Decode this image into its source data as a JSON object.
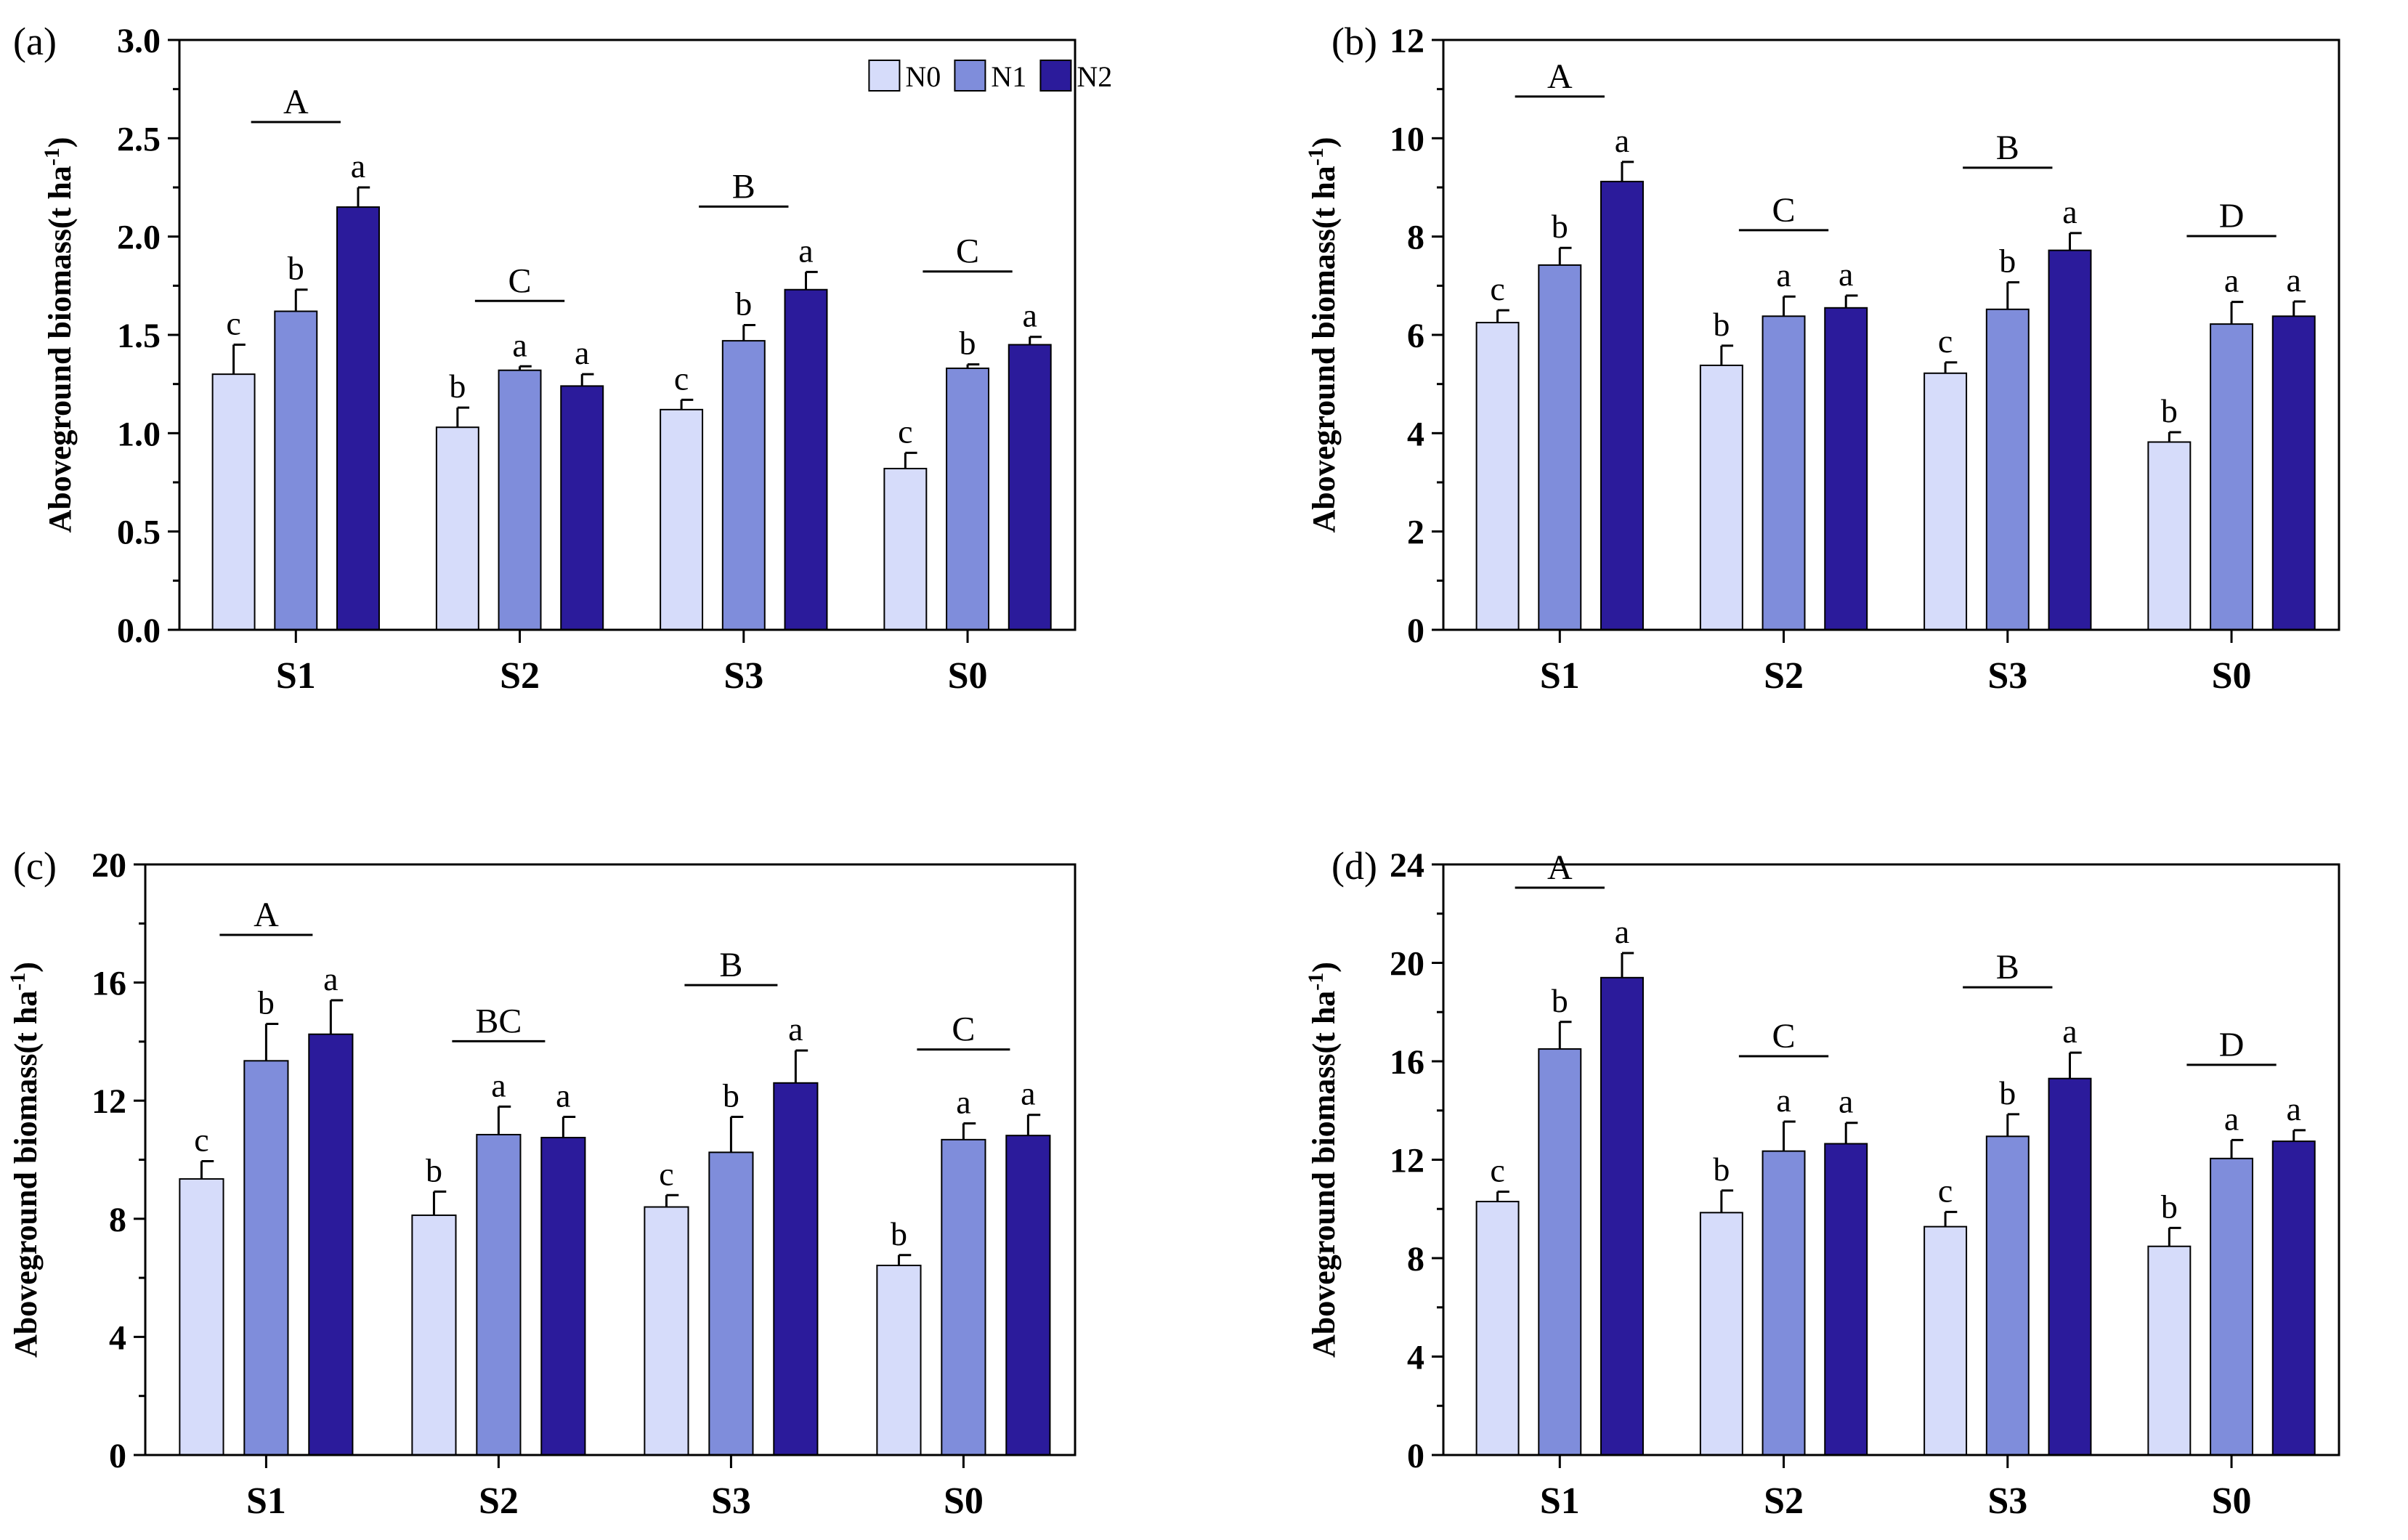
{
  "figure": {
    "legend": [
      {
        "name": "N0",
        "color": "#d6dcfa"
      },
      {
        "name": "N1",
        "color": "#7f8ddb"
      },
      {
        "name": "N2",
        "color": "#2b1b9b"
      }
    ],
    "ylabel_main": "Aboveground biomass(t ha",
    "ylabel_sup": "-1",
    "ylabel_end": ")"
  },
  "chart_data": [
    {
      "type": "bar",
      "panel_label": "(a)",
      "categories": [
        "S1",
        "S2",
        "S3",
        "S0"
      ],
      "ylim": [
        0,
        3.0
      ],
      "yticks": [
        0.0,
        0.5,
        1.0,
        1.5,
        2.0,
        2.5,
        3.0
      ],
      "ytick_labels": [
        "0.0",
        "0.5",
        "1.0",
        "1.5",
        "2.0",
        "2.5",
        "3.0"
      ],
      "series": [
        {
          "name": "N0",
          "values": [
            1.3,
            1.03,
            1.12,
            0.82
          ],
          "errors": [
            0.15,
            0.1,
            0.05,
            0.08
          ],
          "letters": [
            "c",
            "b",
            "c",
            "c"
          ]
        },
        {
          "name": "N1",
          "values": [
            1.62,
            1.32,
            1.47,
            1.33
          ],
          "errors": [
            0.11,
            0.02,
            0.08,
            0.02
          ],
          "letters": [
            "b",
            "a",
            "b",
            "b"
          ]
        },
        {
          "name": "N2",
          "values": [
            2.15,
            1.24,
            1.73,
            1.45
          ],
          "errors": [
            0.1,
            0.06,
            0.09,
            0.04
          ],
          "letters": [
            "a",
            "a",
            "a",
            "a"
          ]
        }
      ],
      "group_letters": [
        "A",
        "C",
        "B",
        "C"
      ],
      "show_legend": true
    },
    {
      "type": "bar",
      "panel_label": "(b)",
      "categories": [
        "S1",
        "S2",
        "S3",
        "S0"
      ],
      "ylim": [
        0,
        12
      ],
      "yticks": [
        0,
        2,
        4,
        6,
        8,
        10,
        12
      ],
      "ytick_labels": [
        "0",
        "2",
        "4",
        "6",
        "8",
        "10",
        "12"
      ],
      "series": [
        {
          "name": "N0",
          "values": [
            6.25,
            5.38,
            5.22,
            3.82
          ],
          "errors": [
            0.25,
            0.4,
            0.22,
            0.2
          ],
          "letters": [
            "c",
            "b",
            "c",
            "b"
          ]
        },
        {
          "name": "N1",
          "values": [
            7.42,
            6.38,
            6.52,
            6.22
          ],
          "errors": [
            0.35,
            0.4,
            0.55,
            0.45
          ],
          "letters": [
            "b",
            "a",
            "b",
            "a"
          ]
        },
        {
          "name": "N2",
          "values": [
            9.12,
            6.55,
            7.72,
            6.38
          ],
          "errors": [
            0.4,
            0.25,
            0.35,
            0.3
          ],
          "letters": [
            "a",
            "a",
            "a",
            "a"
          ]
        }
      ],
      "group_letters": [
        "A",
        "C",
        "B",
        "D"
      ],
      "show_legend": false
    },
    {
      "type": "bar",
      "panel_label": "(c)",
      "categories": [
        "S1",
        "S2",
        "S3",
        "S0"
      ],
      "ylim": [
        0,
        20
      ],
      "yticks": [
        0,
        4,
        8,
        12,
        16,
        20
      ],
      "ytick_labels": [
        "0",
        "4",
        "8",
        "12",
        "16",
        "20"
      ],
      "series": [
        {
          "name": "N0",
          "values": [
            9.35,
            8.12,
            8.4,
            6.42
          ],
          "errors": [
            0.6,
            0.8,
            0.4,
            0.35
          ],
          "letters": [
            "c",
            "b",
            "c",
            "b"
          ]
        },
        {
          "name": "N1",
          "values": [
            13.35,
            10.85,
            10.25,
            10.68
          ],
          "errors": [
            1.25,
            0.95,
            1.2,
            0.55
          ],
          "letters": [
            "b",
            "a",
            "b",
            "a"
          ]
        },
        {
          "name": "N2",
          "values": [
            14.25,
            10.75,
            12.6,
            10.82
          ],
          "errors": [
            1.15,
            0.7,
            1.1,
            0.7
          ],
          "letters": [
            "a",
            "a",
            "a",
            "a"
          ]
        }
      ],
      "group_letters": [
        "A",
        "BC",
        "B",
        "C"
      ],
      "show_legend": false
    },
    {
      "type": "bar",
      "panel_label": "(d)",
      "categories": [
        "S1",
        "S2",
        "S3",
        "S0"
      ],
      "ylim": [
        0,
        24
      ],
      "yticks": [
        0,
        4,
        8,
        12,
        16,
        20,
        24
      ],
      "ytick_labels": [
        "0",
        "4",
        "8",
        "12",
        "16",
        "20",
        "24"
      ],
      "series": [
        {
          "name": "N0",
          "values": [
            10.3,
            9.85,
            9.28,
            8.48
          ],
          "errors": [
            0.4,
            0.9,
            0.6,
            0.75
          ],
          "letters": [
            "c",
            "b",
            "c",
            "b"
          ]
        },
        {
          "name": "N1",
          "values": [
            16.5,
            12.35,
            12.95,
            12.05
          ],
          "errors": [
            1.1,
            1.2,
            0.9,
            0.75
          ],
          "letters": [
            "b",
            "a",
            "b",
            "a"
          ]
        },
        {
          "name": "N2",
          "values": [
            19.4,
            12.65,
            15.3,
            12.75
          ],
          "errors": [
            1.0,
            0.85,
            1.05,
            0.45
          ],
          "letters": [
            "a",
            "a",
            "a",
            "a"
          ]
        }
      ],
      "group_letters": [
        "A",
        "C",
        "B",
        "D"
      ],
      "show_legend": false
    }
  ]
}
